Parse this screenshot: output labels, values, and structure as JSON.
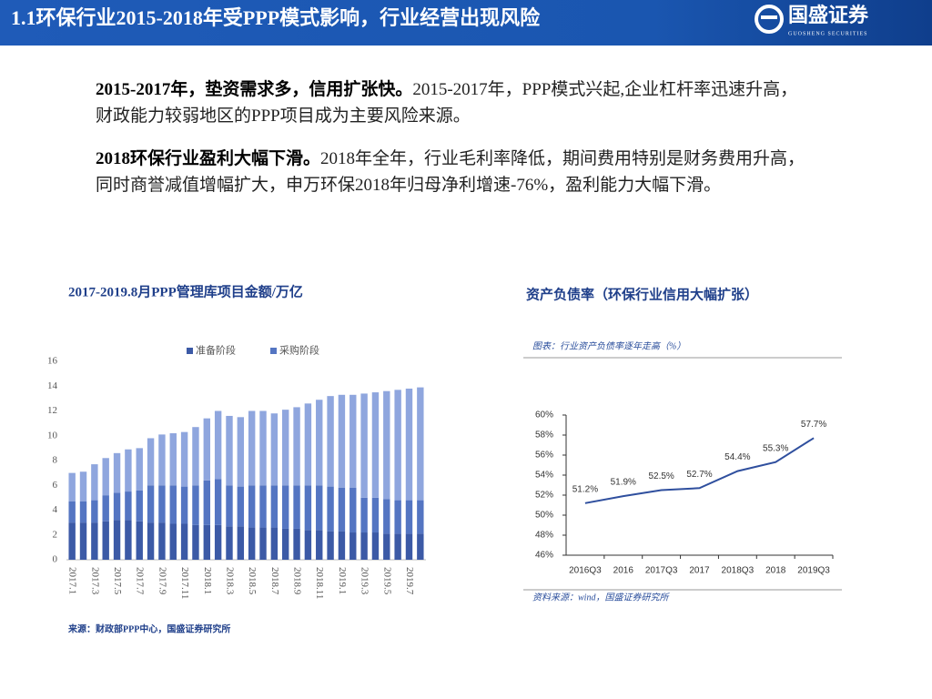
{
  "header": {
    "title": "1.1环保行业2015-2018年受PPP模式影响，行业经营出现风险",
    "logo": "国盛证券",
    "logo_sub": "GUOSHENG SECURITIES"
  },
  "paragraphs": [
    {
      "bold": "2015-2017年，垫资需求多，信用扩张快。",
      "text": "2015-2017年，PPP模式兴起,企业杠杆率迅速升高，财政能力较弱地区的PPP项目成为主要风险来源。"
    },
    {
      "bold": "2018环保行业盈利大幅下滑。",
      "text": "2018年全年，行业毛利率降低，期间费用特别是财务费用升高，同时商誉减值增幅扩大，申万环保2018年归母净利增速-76%，盈利能力大幅下滑。"
    }
  ],
  "chart_data": [
    {
      "type": "stacked-bar",
      "title": "2017-2019.8月PPP管理库项目金额/万亿",
      "source": "来源：财政部PPP中心，国盛证券研究所",
      "categories": [
        "2017.1",
        null,
        "2017.3",
        null,
        "2017.5",
        null,
        "2017.7",
        null,
        "2017.9",
        null,
        "2017.11",
        null,
        "2018.1",
        null,
        "2018.3",
        null,
        "2018.5",
        null,
        "2018.7",
        null,
        "2018.9",
        null,
        "2018.11",
        null,
        "2019.1",
        null,
        "2019.3",
        null,
        "2019.5",
        null,
        "2019.7",
        null
      ],
      "series": [
        {
          "name": "准备阶段",
          "color": "#3c5aa6",
          "values": [
            3.0,
            3.0,
            3.0,
            3.1,
            3.2,
            3.2,
            3.1,
            3.0,
            3.0,
            2.9,
            2.9,
            2.8,
            2.8,
            2.8,
            2.7,
            2.7,
            2.6,
            2.6,
            2.6,
            2.5,
            2.5,
            2.4,
            2.4,
            2.3,
            2.3,
            2.2,
            2.2,
            2.2,
            2.1,
            2.1,
            2.1,
            2.1
          ]
        },
        {
          "name": "采购阶段",
          "color": "#5475c2",
          "values": [
            1.7,
            1.7,
            1.8,
            2.1,
            2.2,
            2.3,
            2.5,
            3.0,
            3.0,
            3.1,
            3.0,
            3.2,
            3.6,
            3.7,
            3.3,
            3.2,
            3.4,
            3.4,
            3.4,
            3.5,
            3.5,
            3.6,
            3.6,
            3.6,
            3.5,
            3.6,
            2.8,
            2.8,
            2.8,
            2.7,
            2.7,
            2.7
          ]
        },
        {
          "color": "#8fa6de",
          "values": [
            2.3,
            2.4,
            2.9,
            3.0,
            3.2,
            3.4,
            3.4,
            3.8,
            4.1,
            4.2,
            4.4,
            4.7,
            5.0,
            5.5,
            5.6,
            5.6,
            6.0,
            6.0,
            5.8,
            6.1,
            6.3,
            6.6,
            6.9,
            7.3,
            7.5,
            7.5,
            8.4,
            8.5,
            8.7,
            8.9,
            9.0,
            9.1
          ]
        }
      ],
      "ylim": [
        0,
        16
      ],
      "yticks": [
        0,
        2,
        4,
        6,
        8,
        10,
        12,
        14,
        16
      ],
      "grid": false,
      "legend": "top"
    },
    {
      "type": "line",
      "title": "资产负债率（环保行业信用大幅扩张）",
      "note": "图表：行业资产负债率逐年走高（%）",
      "source": "资料来源：wind，国盛证券研究所",
      "categories": [
        "2016Q3",
        "2016",
        "2017Q3",
        "2017",
        "2018Q3",
        "2018",
        "2019Q3"
      ],
      "series": [
        {
          "color": "#2f4f9e",
          "values": [
            51.2,
            51.9,
            52.5,
            52.7,
            54.4,
            55.3,
            57.7
          ],
          "value_labels": [
            "51.2%",
            "51.9%",
            "52.5%",
            "52.7%",
            "54.4%",
            "55.3%",
            "57.7%"
          ]
        }
      ],
      "ylim": [
        46,
        60
      ],
      "yticks": [
        {
          "value": 46,
          "label": "46%"
        },
        {
          "value": 48,
          "label": "48%"
        },
        {
          "value": 50,
          "label": "50%"
        },
        {
          "value": 52,
          "label": "52%"
        },
        {
          "value": 54,
          "label": "54%"
        },
        {
          "value": 56,
          "label": "56%"
        },
        {
          "value": 58,
          "label": "58%"
        },
        {
          "value": 60,
          "label": "60%"
        }
      ],
      "grid": false
    }
  ]
}
